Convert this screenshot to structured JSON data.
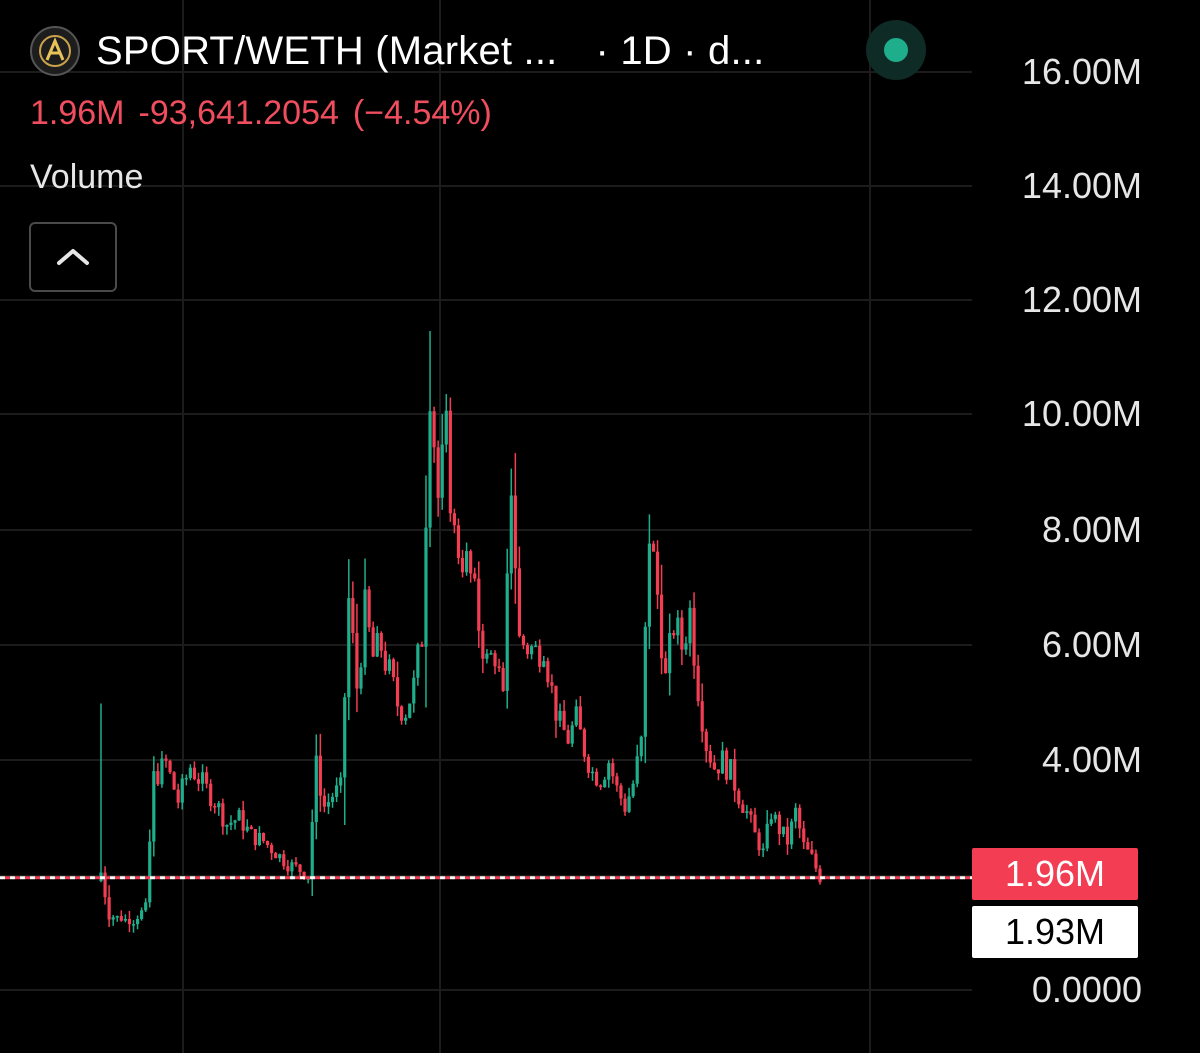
{
  "header": {
    "title": "SPORT/WETH (Market ...",
    "interval": "· 1D · d...",
    "logo_icon": "ai-token-logo-icon",
    "status_icon": "market-open-dot-icon",
    "status_color": "#1fae8c"
  },
  "price_line": {
    "last": "1.96M",
    "change": "-93,641.2054",
    "change_pct": "(−4.54%)",
    "color": "#f04e5e"
  },
  "legend": {
    "volume_label": "Volume",
    "collapse_icon": "chevron-up-icon"
  },
  "colors": {
    "up": "#1fae8c",
    "down": "#f23d52",
    "grid": "#1c1c1c",
    "background": "#000000"
  },
  "axis": {
    "y_ticks": [
      "16.00M",
      "14.00M",
      "12.00M",
      "10.00M",
      "8.00M",
      "6.00M",
      "4.00M",
      "0.0000"
    ]
  },
  "badges": {
    "last_value": "1.96M",
    "other_value": "1.93M"
  },
  "chart_data": {
    "type": "candlestick",
    "series_name": "",
    "ylim": [
      0,
      16.7
    ],
    "y_unit": "M",
    "y_ticks_values": [
      0,
      4,
      6,
      8,
      10,
      12,
      14,
      16
    ],
    "last_value_line": 1.96,
    "grid": true,
    "candles": []
  }
}
